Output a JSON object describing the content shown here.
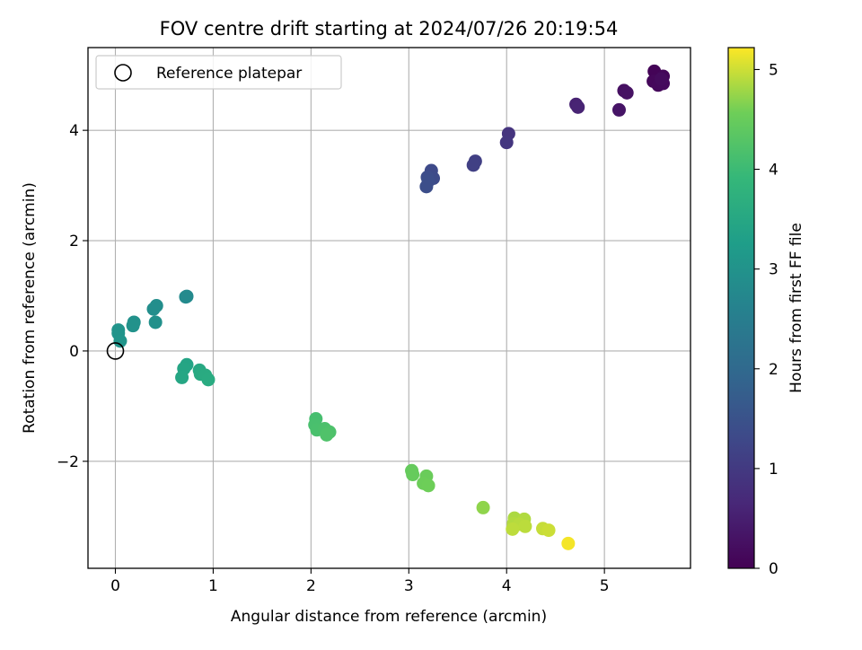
{
  "chart_data": {
    "type": "scatter",
    "title": "FOV centre drift starting at 2024/07/26 20:19:54",
    "xlabel": "Angular distance from reference (arcmin)",
    "ylabel": "Rotation from reference (arcmin)",
    "xlim": [
      -0.28,
      5.88
    ],
    "ylim": [
      -3.94,
      5.5
    ],
    "xticks": [
      0,
      1,
      2,
      3,
      4,
      5
    ],
    "yticks": [
      -2,
      0,
      2,
      4
    ],
    "xtick_labels": [
      "0",
      "1",
      "2",
      "3",
      "4",
      "5"
    ],
    "ytick_labels": [
      "−2",
      "0",
      "2",
      "4"
    ],
    "grid": true,
    "legend": {
      "placement": "top-left",
      "label": "Reference platepar"
    },
    "colorbar": {
      "label": "Hours from first FF file",
      "colormap": "viridis",
      "range": [
        0,
        5.22
      ],
      "ticks": [
        0,
        1,
        2,
        3,
        4,
        5
      ],
      "tick_labels": [
        "0",
        "1",
        "2",
        "3",
        "4",
        "5"
      ]
    },
    "reference_point": {
      "x": 0,
      "y": 0
    },
    "series": [
      {
        "points": [
          {
            "x": 5.51,
            "y": 5.07,
            "c": 0.05
          },
          {
            "x": 5.6,
            "y": 4.98,
            "c": 0.08
          },
          {
            "x": 5.5,
            "y": 4.89,
            "c": 0.1
          },
          {
            "x": 5.55,
            "y": 4.82,
            "c": 0.12
          },
          {
            "x": 5.6,
            "y": 4.85,
            "c": 0.14
          },
          {
            "x": 5.58,
            "y": 4.93,
            "c": 0.16
          },
          {
            "x": 5.2,
            "y": 4.72,
            "c": 0.25
          },
          {
            "x": 5.23,
            "y": 4.68,
            "c": 0.28
          },
          {
            "x": 5.15,
            "y": 4.37,
            "c": 0.32
          },
          {
            "x": 4.71,
            "y": 4.47,
            "c": 0.55
          },
          {
            "x": 4.73,
            "y": 4.42,
            "c": 0.58
          },
          {
            "x": 4.02,
            "y": 3.94,
            "c": 0.88
          },
          {
            "x": 4.0,
            "y": 3.78,
            "c": 0.92
          },
          {
            "x": 3.68,
            "y": 3.44,
            "c": 1.1
          },
          {
            "x": 3.66,
            "y": 3.37,
            "c": 1.13
          },
          {
            "x": 3.23,
            "y": 3.27,
            "c": 1.32
          },
          {
            "x": 3.25,
            "y": 3.13,
            "c": 1.35
          },
          {
            "x": 3.19,
            "y": 3.15,
            "c": 1.38
          },
          {
            "x": 3.2,
            "y": 3.08,
            "c": 1.4
          },
          {
            "x": 3.18,
            "y": 2.98,
            "c": 1.42
          },
          {
            "x": 0.73,
            "y": 0.99,
            "c": 2.78
          },
          {
            "x": 0.72,
            "y": 0.98,
            "c": 2.8
          },
          {
            "x": 0.42,
            "y": 0.82,
            "c": 2.88
          },
          {
            "x": 0.39,
            "y": 0.76,
            "c": 2.9
          },
          {
            "x": 0.41,
            "y": 0.52,
            "c": 2.94
          },
          {
            "x": 0.19,
            "y": 0.52,
            "c": 2.96
          },
          {
            "x": 0.18,
            "y": 0.46,
            "c": 2.98
          },
          {
            "x": 0.03,
            "y": 0.38,
            "c": 3.02
          },
          {
            "x": 0.03,
            "y": 0.32,
            "c": 3.04
          },
          {
            "x": 0.05,
            "y": 0.18,
            "c": 3.06
          },
          {
            "x": 0.73,
            "y": -0.25,
            "c": 3.42
          },
          {
            "x": 0.7,
            "y": -0.32,
            "c": 3.45
          },
          {
            "x": 0.68,
            "y": -0.48,
            "c": 3.48
          },
          {
            "x": 0.86,
            "y": -0.35,
            "c": 3.52
          },
          {
            "x": 0.87,
            "y": -0.42,
            "c": 3.55
          },
          {
            "x": 0.92,
            "y": -0.44,
            "c": 3.58
          },
          {
            "x": 0.95,
            "y": -0.52,
            "c": 3.6
          },
          {
            "x": 2.05,
            "y": -1.23,
            "c": 4.12
          },
          {
            "x": 2.04,
            "y": -1.34,
            "c": 4.14
          },
          {
            "x": 2.06,
            "y": -1.43,
            "c": 4.16
          },
          {
            "x": 2.14,
            "y": -1.41,
            "c": 4.18
          },
          {
            "x": 2.19,
            "y": -1.47,
            "c": 4.2
          },
          {
            "x": 2.16,
            "y": -1.52,
            "c": 4.22
          },
          {
            "x": 3.03,
            "y": -2.17,
            "c": 4.46
          },
          {
            "x": 3.04,
            "y": -2.24,
            "c": 4.48
          },
          {
            "x": 3.18,
            "y": -2.27,
            "c": 4.52
          },
          {
            "x": 3.15,
            "y": -2.4,
            "c": 4.54
          },
          {
            "x": 3.2,
            "y": -2.44,
            "c": 4.56
          },
          {
            "x": 3.76,
            "y": -2.84,
            "c": 4.72
          },
          {
            "x": 4.08,
            "y": -3.03,
            "c": 4.85
          },
          {
            "x": 4.18,
            "y": -3.05,
            "c": 4.87
          },
          {
            "x": 4.07,
            "y": -3.13,
            "c": 4.88
          },
          {
            "x": 4.13,
            "y": -3.14,
            "c": 4.9
          },
          {
            "x": 4.19,
            "y": -3.18,
            "c": 4.92
          },
          {
            "x": 4.06,
            "y": -3.23,
            "c": 4.93
          },
          {
            "x": 4.37,
            "y": -3.22,
            "c": 4.97
          },
          {
            "x": 4.43,
            "y": -3.25,
            "c": 4.99
          },
          {
            "x": 4.63,
            "y": -3.49,
            "c": 5.18
          }
        ]
      }
    ]
  }
}
